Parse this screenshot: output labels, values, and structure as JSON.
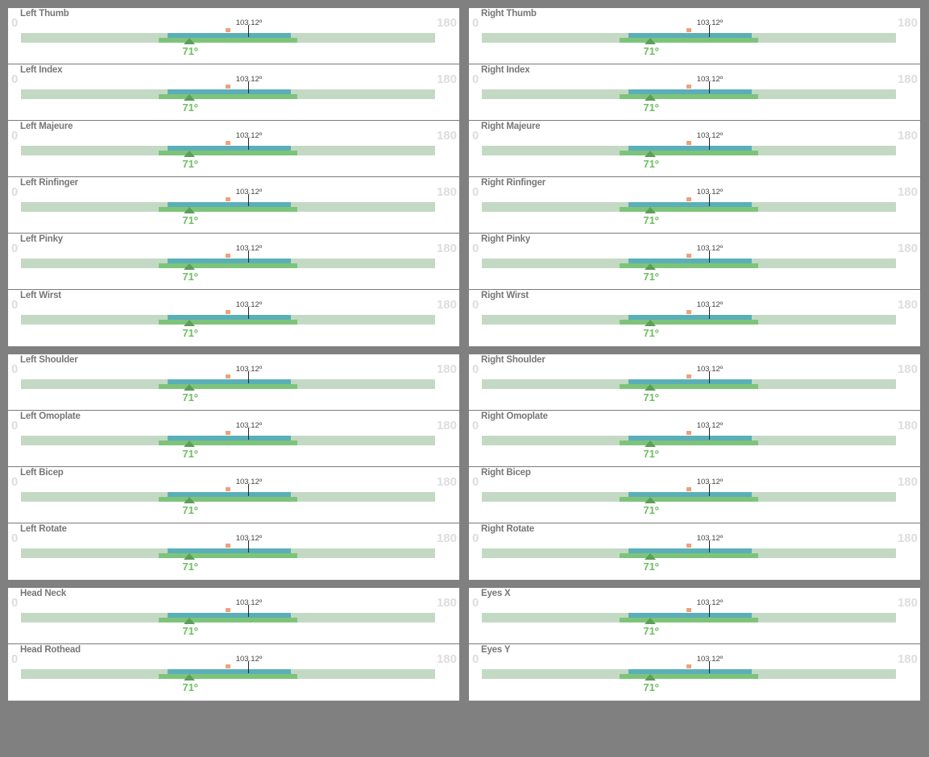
{
  "colors": {
    "background": "#808080",
    "track": "#c3d9c4",
    "range_blue": "#5aafb8",
    "range_green": "#7dc47a",
    "marker_orange": "#f0a07a",
    "target_text": "#6cbf5e"
  },
  "defaults": {
    "min": "0",
    "max": "180",
    "current": "103.12º",
    "target": "71º"
  },
  "panels": [
    {
      "id": "left-hand",
      "rows": [
        {
          "label": "Left Thumb",
          "min": "0",
          "max": "180",
          "current": "103.12º",
          "target": "71º"
        },
        {
          "label": "Left Index",
          "min": "0",
          "max": "180",
          "current": "103.12º",
          "target": "71º"
        },
        {
          "label": "Left Majeure",
          "min": "0",
          "max": "180",
          "current": "103.12º",
          "target": "71º"
        },
        {
          "label": "Left Rinfinger",
          "min": "0",
          "max": "180",
          "current": "103.12º",
          "target": "71º"
        },
        {
          "label": "Left Pinky",
          "min": "0",
          "max": "180",
          "current": "103.12º",
          "target": "71º"
        },
        {
          "label": "Left Wirst",
          "min": "0",
          "max": "180",
          "current": "103.12º",
          "target": "71º"
        }
      ]
    },
    {
      "id": "right-hand",
      "rows": [
        {
          "label": "Right Thumb",
          "min": "0",
          "max": "180",
          "current": "103.12º",
          "target": "71º"
        },
        {
          "label": "Right Index",
          "min": "0",
          "max": "180",
          "current": "103.12º",
          "target": "71º"
        },
        {
          "label": "Right Majeure",
          "min": "0",
          "max": "180",
          "current": "103.12º",
          "target": "71º"
        },
        {
          "label": "Right Rinfinger",
          "min": "0",
          "max": "180",
          "current": "103.12º",
          "target": "71º"
        },
        {
          "label": "Right Pinky",
          "min": "0",
          "max": "180",
          "current": "103.12º",
          "target": "71º"
        },
        {
          "label": "Right Wirst",
          "min": "0",
          "max": "180",
          "current": "103.12º",
          "target": "71º"
        }
      ]
    },
    {
      "id": "left-arm",
      "rows": [
        {
          "label": "Left Shoulder",
          "min": "0",
          "max": "180",
          "current": "103.12º",
          "target": "71º"
        },
        {
          "label": "Left Omoplate",
          "min": "0",
          "max": "180",
          "current": "103.12º",
          "target": "71º"
        },
        {
          "label": "Left Bicep",
          "min": "0",
          "max": "180",
          "current": "103.12º",
          "target": "71º"
        },
        {
          "label": "Left Rotate",
          "min": "0",
          "max": "180",
          "current": "103.12º",
          "target": "71º"
        }
      ]
    },
    {
      "id": "right-arm",
      "rows": [
        {
          "label": "Right Shoulder",
          "min": "0",
          "max": "180",
          "current": "103.12º",
          "target": "71º"
        },
        {
          "label": "Right Omoplate",
          "min": "0",
          "max": "180",
          "current": "103.12º",
          "target": "71º"
        },
        {
          "label": "Right Bicep",
          "min": "0",
          "max": "180",
          "current": "103.12º",
          "target": "71º"
        },
        {
          "label": "Right Rotate",
          "min": "0",
          "max": "180",
          "current": "103.12º",
          "target": "71º"
        }
      ]
    },
    {
      "id": "head",
      "rows": [
        {
          "label": "Head Neck",
          "min": "0",
          "max": "180",
          "current": "103.12º",
          "target": "71º"
        },
        {
          "label": "Head Rothead",
          "min": "0",
          "max": "180",
          "current": "103.12º",
          "target": "71º"
        }
      ]
    },
    {
      "id": "eyes",
      "rows": [
        {
          "label": "Eyes X",
          "min": "0",
          "max": "180",
          "current": "103.12º",
          "target": "71º"
        },
        {
          "label": "Eyes Y",
          "min": "0",
          "max": "180",
          "current": "103.12º",
          "target": "71º"
        }
      ]
    }
  ]
}
